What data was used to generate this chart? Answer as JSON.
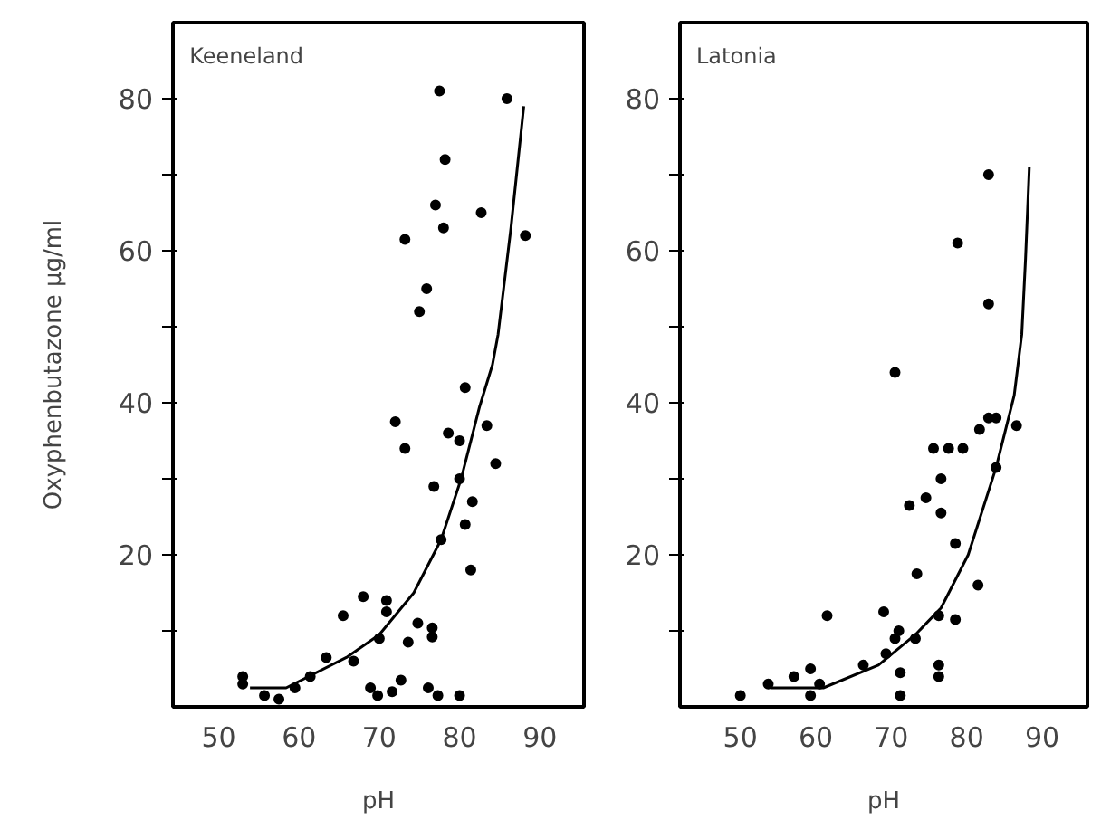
{
  "chart_data": [
    {
      "type": "scatter",
      "title": "Keeneland",
      "xlabel": "pH",
      "ylabel": "Oxyphenbutazone μg/ml",
      "xlim": [
        44.3,
        95.5
      ],
      "ylim": [
        0,
        90
      ],
      "xticks": [
        50,
        60,
        70,
        80,
        90
      ],
      "yticks": [
        {
          "value": 10,
          "label": null
        },
        20,
        {
          "value": 30,
          "label": null
        },
        40,
        {
          "value": 50,
          "label": null
        },
        60,
        {
          "value": 70,
          "label": null
        },
        80
      ],
      "grid": false,
      "series": [
        {
          "marker": "circle",
          "color": "#000000",
          "x": [
            77.5,
            85.9,
            78.2,
            77,
            82.7,
            78,
            88.2,
            73.2,
            75.9,
            75,
            80.7,
            72,
            78.6,
            80,
            83.4,
            73.2,
            84.5,
            80,
            76.8,
            81.6,
            77.7,
            80.7,
            81.4,
            68,
            70.9,
            65.5,
            70.9,
            74.8,
            76.6,
            76.6,
            73.6,
            70,
            63.4,
            66.8,
            61.4,
            53,
            53,
            55.7,
            57.5,
            59.5,
            72.7,
            68.9,
            69.8,
            71.6,
            76.1,
            77.3,
            80
          ],
          "values": [
            81,
            80,
            72,
            66,
            65,
            63,
            62,
            61.5,
            55,
            52,
            42,
            37.5,
            36,
            35,
            37,
            34,
            32,
            30,
            29,
            27,
            22,
            24,
            18,
            14.5,
            14,
            12,
            12.5,
            11,
            10.4,
            9.2,
            8.5,
            9,
            6.5,
            6,
            4,
            4,
            3,
            1.5,
            1,
            2.5,
            3.5,
            2.5,
            1.5,
            2,
            2.5,
            1.5,
            1.5
          ]
        },
        {
          "type": "line",
          "color": "#000000",
          "line_style": "solid",
          "x": [
            53.9,
            58.4,
            65.9,
            70,
            74.3,
            77.7,
            80.2,
            82.5,
            84.1,
            84.8,
            86.4,
            88
          ],
          "values": [
            2.5,
            2.5,
            6.5,
            9.5,
            15,
            22,
            30,
            39.5,
            45,
            49,
            63,
            79
          ]
        }
      ]
    },
    {
      "type": "scatter",
      "title": "Latonia",
      "xlabel": "pH",
      "xlim": [
        42,
        96
      ],
      "ylim": [
        0,
        90
      ],
      "xticks": [
        50,
        60,
        70,
        80,
        90
      ],
      "yticks": [
        {
          "value": 10,
          "label": null
        },
        20,
        {
          "value": 30,
          "label": null
        },
        40,
        {
          "value": 50,
          "label": null
        },
        60,
        {
          "value": 70,
          "label": null
        },
        80
      ],
      "grid": false,
      "series": [
        {
          "marker": "circle",
          "color": "#000000",
          "x": [
            82.9,
            78.8,
            82.9,
            70.5,
            81.7,
            82.9,
            83.9,
            86.6,
            75.6,
            77.6,
            79.5,
            76.6,
            83.9,
            74.6,
            72.4,
            76.6,
            78.5,
            73.4,
            81.5,
            69,
            76.3,
            78.5,
            61.5,
            73.2,
            71,
            70.5,
            69.3,
            71.2,
            76.3,
            76.3,
            66.3,
            59.3,
            57.1,
            53.7,
            60.5,
            59.3,
            50,
            71.2
          ],
          "values": [
            70,
            61,
            53,
            44,
            36.5,
            38,
            38,
            37,
            34,
            34,
            34,
            30,
            31.5,
            27.5,
            26.5,
            25.5,
            21.5,
            17.5,
            16,
            12.5,
            12,
            11.5,
            12,
            9,
            10,
            9,
            7,
            4.5,
            5.5,
            4,
            5.5,
            5,
            4,
            3,
            3,
            1.5,
            1.5,
            1.5
          ]
        },
        {
          "type": "line",
          "color": "#000000",
          "line_style": "solid",
          "x": [
            54.1,
            61,
            68.3,
            73.2,
            76.6,
            80.2,
            83.9,
            86.3,
            87.3,
            87.8,
            88.3
          ],
          "values": [
            2.5,
            2.5,
            5.5,
            9.5,
            13,
            20,
            31.5,
            41,
            49,
            59,
            71
          ]
        }
      ]
    }
  ]
}
